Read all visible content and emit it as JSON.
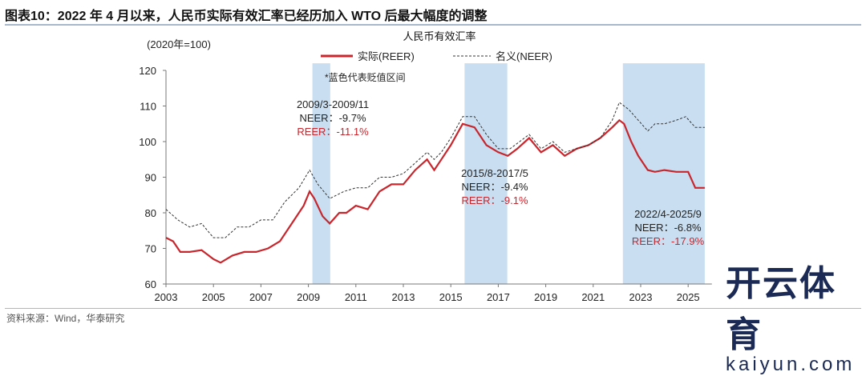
{
  "header": {
    "title": "图表10：2022 年 4 月以来，人民币实际有效汇率已经历加入 WTO 后最大幅度的调整"
  },
  "footer": {
    "source": "资料来源：Wind，华泰研究"
  },
  "watermark": {
    "logo_cn": "开云体育",
    "logo_en": "kaiyun.com"
  },
  "colors": {
    "reer": "#c8252c",
    "neer": "#333333",
    "band": "#c9dff1"
  },
  "chart_data": {
    "type": "line",
    "title": "人民币有效汇率",
    "ylabel": "(2020年=100)",
    "ylim": [
      60,
      120
    ],
    "yticks": [
      60,
      70,
      80,
      90,
      100,
      110,
      120
    ],
    "xlim": [
      2003,
      2026
    ],
    "xticks": [
      2003,
      2005,
      2007,
      2009,
      2011,
      2013,
      2015,
      2017,
      2019,
      2021,
      2023,
      2025
    ],
    "xtick_labels": [
      "2003",
      "2005",
      "2007",
      "2009",
      "2011",
      "2013",
      "2015",
      "2017",
      "2019",
      "2021",
      "2023",
      "2025"
    ],
    "legend": {
      "placement": "top",
      "entries": [
        "实际(REER)",
        "名义(NEER)"
      ]
    },
    "note": "*蓝色代表贬值区间",
    "bands": [
      {
        "start": "2009/3",
        "end": "2009/11",
        "from": 2009.17,
        "to": 2009.92,
        "label": "2009/3-2009/11",
        "neer": "NEER：-9.7%",
        "reer": "REER：-11.1%"
      },
      {
        "start": "2015/8",
        "end": "2017/5",
        "from": 2015.58,
        "to": 2017.38,
        "label": "2015/8-2017/5",
        "neer": "NEER：-9.4%",
        "reer": "REER：-9.1%"
      },
      {
        "start": "2022/4",
        "end": "2025/9",
        "from": 2022.25,
        "to": 2025.7,
        "label": "2022/4-2025/9",
        "neer": "NEER：-6.8%",
        "reer": "REER：-17.9%"
      }
    ],
    "series": [
      {
        "name": "实际(REER)",
        "style": "solid",
        "points": [
          [
            2003,
            73
          ],
          [
            2003.3,
            72
          ],
          [
            2003.6,
            69
          ],
          [
            2004,
            69
          ],
          [
            2004.5,
            69.5
          ],
          [
            2005,
            67
          ],
          [
            2005.3,
            66
          ],
          [
            2005.8,
            68
          ],
          [
            2006.3,
            69
          ],
          [
            2006.8,
            69
          ],
          [
            2007.3,
            70
          ],
          [
            2007.8,
            72
          ],
          [
            2008.3,
            77
          ],
          [
            2008.8,
            82
          ],
          [
            2009.05,
            86
          ],
          [
            2009.25,
            84
          ],
          [
            2009.6,
            79
          ],
          [
            2009.9,
            77
          ],
          [
            2010.3,
            80
          ],
          [
            2010.6,
            80
          ],
          [
            2011,
            82
          ],
          [
            2011.5,
            81
          ],
          [
            2012,
            86
          ],
          [
            2012.5,
            88
          ],
          [
            2013,
            88
          ],
          [
            2013.5,
            92
          ],
          [
            2014,
            95
          ],
          [
            2014.3,
            92
          ],
          [
            2014.6,
            95
          ],
          [
            2015,
            99
          ],
          [
            2015.5,
            105
          ],
          [
            2016,
            104
          ],
          [
            2016.5,
            99
          ],
          [
            2017,
            97
          ],
          [
            2017.4,
            96
          ],
          [
            2017.8,
            98
          ],
          [
            2018.3,
            101
          ],
          [
            2018.8,
            97
          ],
          [
            2019.3,
            99
          ],
          [
            2019.8,
            96
          ],
          [
            2020.3,
            98
          ],
          [
            2020.8,
            99
          ],
          [
            2021.3,
            101
          ],
          [
            2021.8,
            104
          ],
          [
            2022.1,
            106
          ],
          [
            2022.3,
            105
          ],
          [
            2022.6,
            100
          ],
          [
            2022.9,
            96
          ],
          [
            2023.3,
            92
          ],
          [
            2023.6,
            91.5
          ],
          [
            2024,
            92
          ],
          [
            2024.5,
            91.5
          ],
          [
            2025,
            91.5
          ],
          [
            2025.3,
            87
          ],
          [
            2025.7,
            87
          ]
        ]
      },
      {
        "name": "名义(NEER)",
        "style": "dashed",
        "points": [
          [
            2003,
            81
          ],
          [
            2003.5,
            78
          ],
          [
            2004,
            76
          ],
          [
            2004.5,
            77
          ],
          [
            2005,
            73
          ],
          [
            2005.5,
            73
          ],
          [
            2006,
            76
          ],
          [
            2006.5,
            76
          ],
          [
            2007,
            78
          ],
          [
            2007.5,
            78
          ],
          [
            2008,
            83
          ],
          [
            2008.6,
            87
          ],
          [
            2009.05,
            92
          ],
          [
            2009.4,
            88
          ],
          [
            2009.9,
            84
          ],
          [
            2010.5,
            86
          ],
          [
            2011,
            87
          ],
          [
            2011.5,
            87
          ],
          [
            2012,
            90
          ],
          [
            2012.5,
            90
          ],
          [
            2013,
            91
          ],
          [
            2013.5,
            94
          ],
          [
            2014,
            97
          ],
          [
            2014.3,
            95
          ],
          [
            2014.6,
            97
          ],
          [
            2015,
            101
          ],
          [
            2015.5,
            107
          ],
          [
            2016,
            107
          ],
          [
            2016.5,
            102
          ],
          [
            2017,
            98
          ],
          [
            2017.5,
            98
          ],
          [
            2018.3,
            102
          ],
          [
            2018.8,
            98
          ],
          [
            2019.3,
            100
          ],
          [
            2019.8,
            97
          ],
          [
            2020.3,
            98
          ],
          [
            2020.8,
            99
          ],
          [
            2021.3,
            101
          ],
          [
            2021.8,
            106
          ],
          [
            2022.1,
            111
          ],
          [
            2022.5,
            109
          ],
          [
            2022.9,
            106
          ],
          [
            2023.3,
            103
          ],
          [
            2023.6,
            105
          ],
          [
            2024,
            105
          ],
          [
            2024.5,
            106
          ],
          [
            2024.9,
            107
          ],
          [
            2025.3,
            104
          ],
          [
            2025.7,
            104
          ]
        ]
      }
    ]
  }
}
